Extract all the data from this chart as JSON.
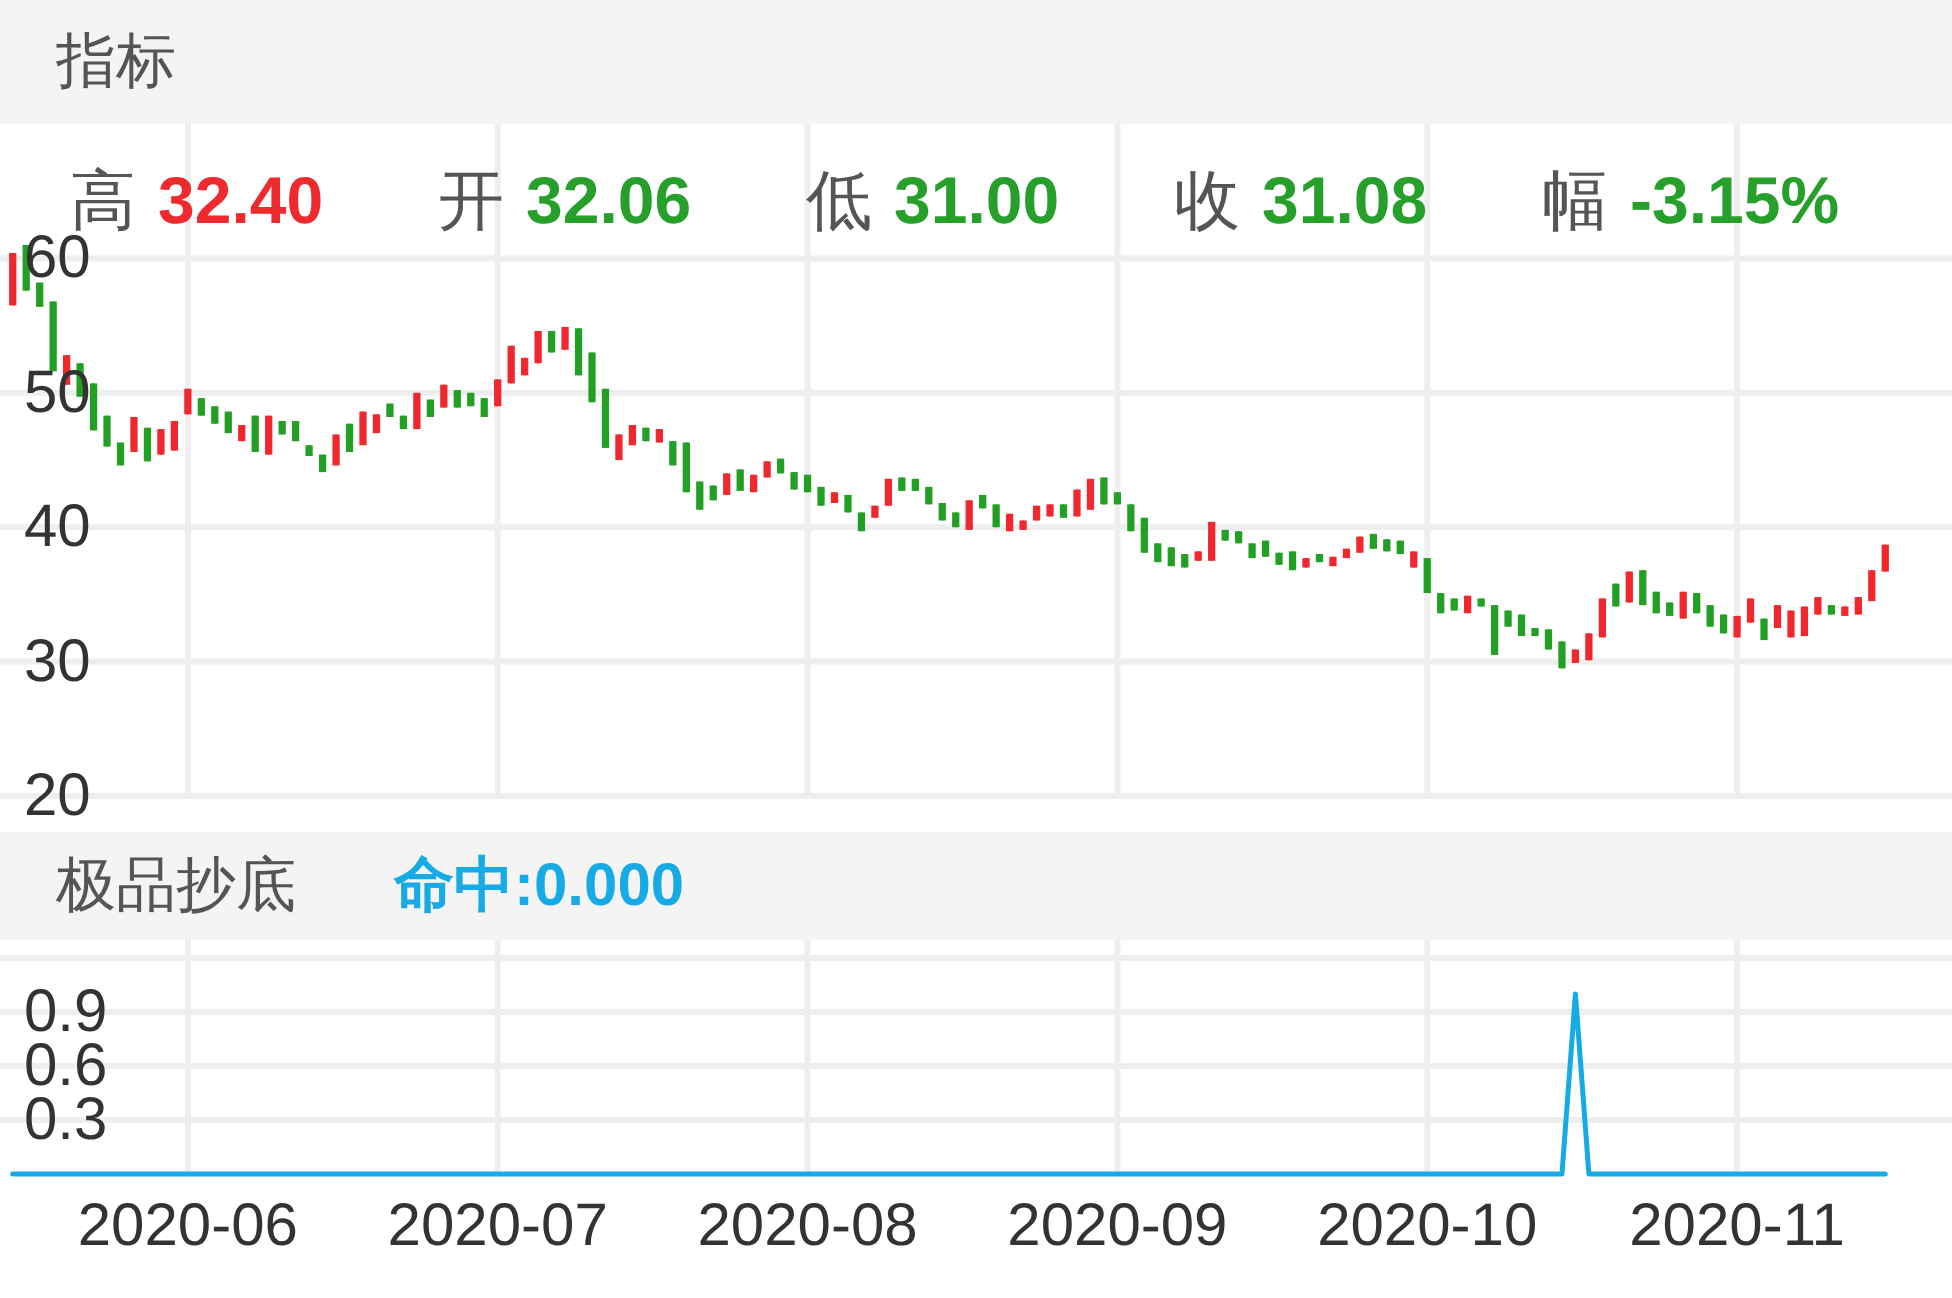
{
  "chart_data": [
    {
      "type": "candlestick",
      "title": "指标",
      "annotations": [
        "高",
        "32.40",
        "开",
        "32.06",
        "低",
        "31.00",
        "收",
        "31.08",
        "幅",
        "-3.15%"
      ],
      "categories": [
        null,
        null,
        null,
        null,
        null,
        null,
        null,
        null,
        null,
        null,
        null,
        null,
        null,
        "2020-06",
        null,
        null,
        null,
        null,
        null,
        null,
        null,
        null,
        null,
        null,
        null,
        null,
        null,
        null,
        null,
        null,
        null,
        null,
        null,
        null,
        null,
        null,
        "2020-07",
        null,
        null,
        null,
        null,
        null,
        null,
        null,
        null,
        null,
        null,
        null,
        null,
        null,
        null,
        null,
        null,
        null,
        null,
        null,
        null,
        null,
        null,
        "2020-08",
        null,
        null,
        null,
        null,
        null,
        null,
        null,
        null,
        null,
        null,
        null,
        null,
        null,
        null,
        null,
        null,
        null,
        null,
        null,
        null,
        null,
        null,
        "2020-09",
        null,
        null,
        null,
        null,
        null,
        null,
        null,
        null,
        null,
        null,
        null,
        null,
        null,
        null,
        null,
        null,
        null,
        null,
        null,
        null,
        null,
        null,
        "2020-10",
        null,
        null,
        null,
        null,
        null,
        null,
        null,
        null,
        null,
        null,
        null,
        null,
        null,
        null,
        null,
        null,
        null,
        null,
        null,
        null,
        null,
        null,
        "2020-11",
        null,
        null,
        null,
        null,
        null,
        null,
        null,
        null,
        null,
        null,
        null
      ],
      "ohlc": [
        [
          56.5,
          60.4,
          56.5,
          60.4
        ],
        [
          61.0,
          61.0,
          57.6,
          57.6
        ],
        [
          58.2,
          58.2,
          56.4,
          56.4
        ],
        [
          56.8,
          56.8,
          51.6,
          51.6
        ],
        [
          50.6,
          52.8,
          50.6,
          52.8
        ],
        [
          52.2,
          52.2,
          49.7,
          49.7
        ],
        [
          50.7,
          50.7,
          47.2,
          47.2
        ],
        [
          48.3,
          48.3,
          46.0,
          46.0
        ],
        [
          46.3,
          46.3,
          44.6,
          44.6
        ],
        [
          45.6,
          48.2,
          45.6,
          48.2
        ],
        [
          47.4,
          47.4,
          44.9,
          44.9
        ],
        [
          45.4,
          47.3,
          45.4,
          47.3
        ],
        [
          45.7,
          47.9,
          45.7,
          47.9
        ],
        [
          48.4,
          50.3,
          48.4,
          50.3
        ],
        [
          49.6,
          49.6,
          48.3,
          48.3
        ],
        [
          49.0,
          49.0,
          47.7,
          47.7
        ],
        [
          48.6,
          48.6,
          47.0,
          47.0
        ],
        [
          46.4,
          47.6,
          46.4,
          47.6
        ],
        [
          48.3,
          48.3,
          45.6,
          45.6
        ],
        [
          45.4,
          48.3,
          45.4,
          48.3
        ],
        [
          47.9,
          47.9,
          46.9,
          46.9
        ],
        [
          47.9,
          47.9,
          46.4,
          46.4
        ],
        [
          46.1,
          46.1,
          45.3,
          45.3
        ],
        [
          45.4,
          45.4,
          44.1,
          44.1
        ],
        [
          44.6,
          46.9,
          44.6,
          46.9
        ],
        [
          47.7,
          47.7,
          45.6,
          45.6
        ],
        [
          46.1,
          48.6,
          46.1,
          48.6
        ],
        [
          47.0,
          48.4,
          47.0,
          48.4
        ],
        [
          49.2,
          49.2,
          48.2,
          48.2
        ],
        [
          48.3,
          48.3,
          47.3,
          47.3
        ],
        [
          47.3,
          50.0,
          47.3,
          50.0
        ],
        [
          49.5,
          49.5,
          48.2,
          48.2
        ],
        [
          48.9,
          50.6,
          48.9,
          50.6
        ],
        [
          50.2,
          50.2,
          48.9,
          48.9
        ],
        [
          50.0,
          50.0,
          49.0,
          49.0
        ],
        [
          49.6,
          49.6,
          48.2,
          48.2
        ],
        [
          49.0,
          51.0,
          49.0,
          51.0
        ],
        [
          50.7,
          53.5,
          50.7,
          53.5
        ],
        [
          51.3,
          52.6,
          51.3,
          52.6
        ],
        [
          52.2,
          54.6,
          52.2,
          54.6
        ],
        [
          54.6,
          54.6,
          53.0,
          53.0
        ],
        [
          53.2,
          54.9,
          53.2,
          54.9
        ],
        [
          54.8,
          54.8,
          51.3,
          51.3
        ],
        [
          53.0,
          53.0,
          49.3,
          49.3
        ],
        [
          50.3,
          50.3,
          45.9,
          45.9
        ],
        [
          45.0,
          46.9,
          45.0,
          46.9
        ],
        [
          46.1,
          47.6,
          46.1,
          47.6
        ],
        [
          47.4,
          47.4,
          46.4,
          46.4
        ],
        [
          46.3,
          47.3,
          46.3,
          47.3
        ],
        [
          46.4,
          46.4,
          44.6,
          44.6
        ],
        [
          46.3,
          46.3,
          42.6,
          42.6
        ],
        [
          43.4,
          43.4,
          41.3,
          41.3
        ],
        [
          43.1,
          43.1,
          42.0,
          42.0
        ],
        [
          42.4,
          44.0,
          42.4,
          44.0
        ],
        [
          44.3,
          44.3,
          42.7,
          42.7
        ],
        [
          42.6,
          43.9,
          42.6,
          43.9
        ],
        [
          43.7,
          44.9,
          43.7,
          44.9
        ],
        [
          45.1,
          45.1,
          44.0,
          44.0
        ],
        [
          44.1,
          44.1,
          42.8,
          42.8
        ],
        [
          43.9,
          43.9,
          42.6,
          42.6
        ],
        [
          43.0,
          43.0,
          41.6,
          41.6
        ],
        [
          41.8,
          42.6,
          41.8,
          42.6
        ],
        [
          42.4,
          42.4,
          41.1,
          41.1
        ],
        [
          41.1,
          41.1,
          39.7,
          39.7
        ],
        [
          40.7,
          41.6,
          40.7,
          41.6
        ],
        [
          41.6,
          43.6,
          41.6,
          43.6
        ],
        [
          43.7,
          43.7,
          42.7,
          42.7
        ],
        [
          43.6,
          43.6,
          42.7,
          42.7
        ],
        [
          43.0,
          43.0,
          41.7,
          41.7
        ],
        [
          41.8,
          41.8,
          40.5,
          40.5
        ],
        [
          41.1,
          41.1,
          40.0,
          40.0
        ],
        [
          39.8,
          42.0,
          39.8,
          42.0
        ],
        [
          42.4,
          42.4,
          41.4,
          41.4
        ],
        [
          41.7,
          41.7,
          40.0,
          40.0
        ],
        [
          39.7,
          41.0,
          39.7,
          41.0
        ],
        [
          39.8,
          40.5,
          39.8,
          40.5
        ],
        [
          40.5,
          41.6,
          40.5,
          41.6
        ],
        [
          40.8,
          41.7,
          40.8,
          41.7
        ],
        [
          41.7,
          41.7,
          40.7,
          40.7
        ],
        [
          40.8,
          42.8,
          40.8,
          42.8
        ],
        [
          41.3,
          43.6,
          41.3,
          43.6
        ],
        [
          43.7,
          43.7,
          41.7,
          41.7
        ],
        [
          42.6,
          42.6,
          41.7,
          41.7
        ],
        [
          41.7,
          41.7,
          39.7,
          39.7
        ],
        [
          40.7,
          40.7,
          38.1,
          38.1
        ],
        [
          38.8,
          38.8,
          37.4,
          37.4
        ],
        [
          38.5,
          38.5,
          37.1,
          37.1
        ],
        [
          38.0,
          38.0,
          37.0,
          37.0
        ],
        [
          37.5,
          38.2,
          37.5,
          38.2
        ],
        [
          37.5,
          40.4,
          37.5,
          40.4
        ],
        [
          39.8,
          39.8,
          39.0,
          39.0
        ],
        [
          39.7,
          39.7,
          38.8,
          38.8
        ],
        [
          38.8,
          38.8,
          37.7,
          37.7
        ],
        [
          39.0,
          39.0,
          37.8,
          37.8
        ],
        [
          38.1,
          38.1,
          37.2,
          37.2
        ],
        [
          38.2,
          38.2,
          36.8,
          36.8
        ],
        [
          37.0,
          37.7,
          37.0,
          37.7
        ],
        [
          38.0,
          38.0,
          37.4,
          37.4
        ],
        [
          37.1,
          37.8,
          37.1,
          37.8
        ],
        [
          37.7,
          38.4,
          37.7,
          38.4
        ],
        [
          38.1,
          39.3,
          38.1,
          39.3
        ],
        [
          39.5,
          39.5,
          38.4,
          38.4
        ],
        [
          39.1,
          39.1,
          38.2,
          38.2
        ],
        [
          39.0,
          39.0,
          38.0,
          38.0
        ],
        [
          37.0,
          38.2,
          37.0,
          38.2
        ],
        [
          37.7,
          37.7,
          35.1,
          35.1
        ],
        [
          35.1,
          35.1,
          33.6,
          33.6
        ],
        [
          34.7,
          34.7,
          33.8,
          33.8
        ],
        [
          33.6,
          34.9,
          33.6,
          34.9
        ],
        [
          34.7,
          34.7,
          34.1,
          34.1
        ],
        [
          34.2,
          34.2,
          30.5,
          30.5
        ],
        [
          33.8,
          33.8,
          32.6,
          32.6
        ],
        [
          33.5,
          33.5,
          31.9,
          31.9
        ],
        [
          32.5,
          32.5,
          31.9,
          31.9
        ],
        [
          32.4,
          32.4,
          30.9,
          30.9
        ],
        [
          31.5,
          31.5,
          29.5,
          29.5
        ],
        [
          29.9,
          30.9,
          29.9,
          30.9
        ],
        [
          30.1,
          32.1,
          30.1,
          32.1
        ],
        [
          31.8,
          34.7,
          31.8,
          34.7
        ],
        [
          35.8,
          35.8,
          34.1,
          34.1
        ],
        [
          34.4,
          36.7,
          34.4,
          36.7
        ],
        [
          36.8,
          36.8,
          34.2,
          34.2
        ],
        [
          35.2,
          35.2,
          33.6,
          33.6
        ],
        [
          34.4,
          34.4,
          33.4,
          33.4
        ],
        [
          33.2,
          35.2,
          33.2,
          35.2
        ],
        [
          35.1,
          35.1,
          33.6,
          33.6
        ],
        [
          34.2,
          34.2,
          32.6,
          32.6
        ],
        [
          33.5,
          33.5,
          32.1,
          32.1
        ],
        [
          31.8,
          33.4,
          31.8,
          33.4
        ],
        [
          32.9,
          34.7,
          32.9,
          34.7
        ],
        [
          33.2,
          33.2,
          31.6,
          31.6
        ],
        [
          32.5,
          34.2,
          32.5,
          34.2
        ],
        [
          31.8,
          33.8,
          31.8,
          33.8
        ],
        [
          31.9,
          34.1,
          31.9,
          34.1
        ],
        [
          33.5,
          34.8,
          33.5,
          34.8
        ],
        [
          34.2,
          34.2,
          33.5,
          33.5
        ],
        [
          33.4,
          34.1,
          33.4,
          34.1
        ],
        [
          33.5,
          34.8,
          33.5,
          34.8
        ],
        [
          34.5,
          36.8,
          34.5,
          36.8
        ],
        [
          36.7,
          38.7,
          36.7,
          38.7
        ]
      ],
      "colors": [
        "#f0282d",
        "#21a024",
        "#21a024",
        "#21a024",
        "#f0282d",
        "#21a024",
        "#21a024",
        "#21a024",
        "#21a024",
        "#f0282d",
        "#21a024",
        "#f0282d",
        "#f0282d",
        "#f0282d",
        "#21a024",
        "#21a024",
        "#21a024",
        "#f0282d",
        "#21a024",
        "#f0282d",
        "#21a024",
        "#21a024",
        "#21a024",
        "#21a024",
        "#f0282d",
        "#21a024",
        "#f0282d",
        "#f0282d",
        "#21a024",
        "#21a024",
        "#f0282d",
        "#21a024",
        "#f0282d",
        "#21a024",
        "#21a024",
        "#21a024",
        "#f0282d",
        "#f0282d",
        "#f0282d",
        "#f0282d",
        "#21a024",
        "#f0282d",
        "#21a024",
        "#21a024",
        "#21a024",
        "#f0282d",
        "#f0282d",
        "#21a024",
        "#f0282d",
        "#21a024",
        "#21a024",
        "#21a024",
        "#21a024",
        "#f0282d",
        "#21a024",
        "#f0282d",
        "#f0282d",
        "#21a024",
        "#21a024",
        "#21a024",
        "#21a024",
        "#f0282d",
        "#21a024",
        "#21a024",
        "#f0282d",
        "#f0282d",
        "#21a024",
        "#21a024",
        "#21a024",
        "#21a024",
        "#21a024",
        "#f0282d",
        "#21a024",
        "#21a024",
        "#f0282d",
        "#f0282d",
        "#f0282d",
        "#f0282d",
        "#21a024",
        "#f0282d",
        "#f0282d",
        "#21a024",
        "#21a024",
        "#21a024",
        "#21a024",
        "#21a024",
        "#21a024",
        "#21a024",
        "#f0282d",
        "#f0282d",
        "#21a024",
        "#21a024",
        "#21a024",
        "#21a024",
        "#21a024",
        "#21a024",
        "#f0282d",
        "#21a024",
        "#f0282d",
        "#f0282d",
        "#f0282d",
        "#21a024",
        "#21a024",
        "#21a024",
        "#f0282d",
        "#21a024",
        "#21a024",
        "#21a024",
        "#f0282d",
        "#21a024",
        "#21a024",
        "#21a024",
        "#21a024",
        "#21a024",
        "#21a024",
        "#21a024",
        "#f0282d",
        "#f0282d",
        "#f0282d",
        "#21a024",
        "#f0282d",
        "#21a024",
        "#21a024",
        "#21a024",
        "#f0282d",
        "#21a024",
        "#21a024",
        "#21a024",
        "#f0282d",
        "#f0282d",
        "#21a024",
        "#f0282d",
        "#f0282d",
        "#f0282d",
        "#f0282d",
        "#21a024",
        "#f0282d",
        "#f0282d",
        "#f0282d",
        "#f0282d"
      ],
      "ylim": [
        20,
        70
      ],
      "yticks": [
        20,
        30,
        40,
        50,
        60
      ],
      "grid": true,
      "tick_labels": "y"
    },
    {
      "type": "line",
      "title": "极品抄底",
      "annotations": [
        "命中:0.000"
      ],
      "categories": [
        null,
        null,
        null,
        null,
        null,
        null,
        null,
        null,
        null,
        null,
        null,
        null,
        null,
        "2020-06",
        null,
        null,
        null,
        null,
        null,
        null,
        null,
        null,
        null,
        null,
        null,
        null,
        null,
        null,
        null,
        null,
        null,
        null,
        null,
        null,
        null,
        null,
        "2020-07",
        null,
        null,
        null,
        null,
        null,
        null,
        null,
        null,
        null,
        null,
        null,
        null,
        null,
        null,
        null,
        null,
        null,
        null,
        null,
        null,
        null,
        null,
        "2020-08",
        null,
        null,
        null,
        null,
        null,
        null,
        null,
        null,
        null,
        null,
        null,
        null,
        null,
        null,
        null,
        null,
        null,
        null,
        null,
        null,
        null,
        null,
        "2020-09",
        null,
        null,
        null,
        null,
        null,
        null,
        null,
        null,
        null,
        null,
        null,
        null,
        null,
        null,
        null,
        null,
        null,
        null,
        null,
        null,
        null,
        null,
        "2020-10",
        null,
        null,
        null,
        null,
        null,
        null,
        null,
        null,
        null,
        null,
        null,
        null,
        null,
        null,
        null,
        null,
        null,
        null,
        null,
        null,
        null,
        null,
        "2020-11",
        null,
        null,
        null,
        null,
        null,
        null,
        null,
        null,
        null,
        null,
        null
      ],
      "values": [
        0,
        0,
        0,
        0,
        0,
        0,
        0,
        0,
        0,
        0,
        0,
        0,
        0,
        0,
        0,
        0,
        0,
        0,
        0,
        0,
        0,
        0,
        0,
        0,
        0,
        0,
        0,
        0,
        0,
        0,
        0,
        0,
        0,
        0,
        0,
        0,
        0,
        0,
        0,
        0,
        0,
        0,
        0,
        0,
        0,
        0,
        0,
        0,
        0,
        0,
        0,
        0,
        0,
        0,
        0,
        0,
        0,
        0,
        0,
        0,
        0,
        0,
        0,
        0,
        0,
        0,
        0,
        0,
        0,
        0,
        0,
        0,
        0,
        0,
        0,
        0,
        0,
        0,
        0,
        0,
        0,
        0,
        0,
        0,
        0,
        0,
        0,
        0,
        0,
        0,
        0,
        0,
        0,
        0,
        0,
        0,
        0,
        0,
        0,
        0,
        0,
        0,
        0,
        0,
        0,
        0,
        0,
        0,
        0,
        0,
        0,
        0,
        0,
        0,
        0,
        0,
        1,
        0,
        0,
        0,
        0,
        0,
        0,
        0,
        0,
        0,
        0,
        0,
        0,
        0,
        0,
        0,
        0,
        0,
        0,
        0,
        0,
        0,
        0,
        0
      ],
      "color": "#16abe4",
      "ylim": [
        0,
        1.3
      ],
      "yticks": [
        0.3,
        0.6,
        0.9,
        {
          "value": 1.2,
          "label": null
        }
      ],
      "grid": true
    }
  ]
}
